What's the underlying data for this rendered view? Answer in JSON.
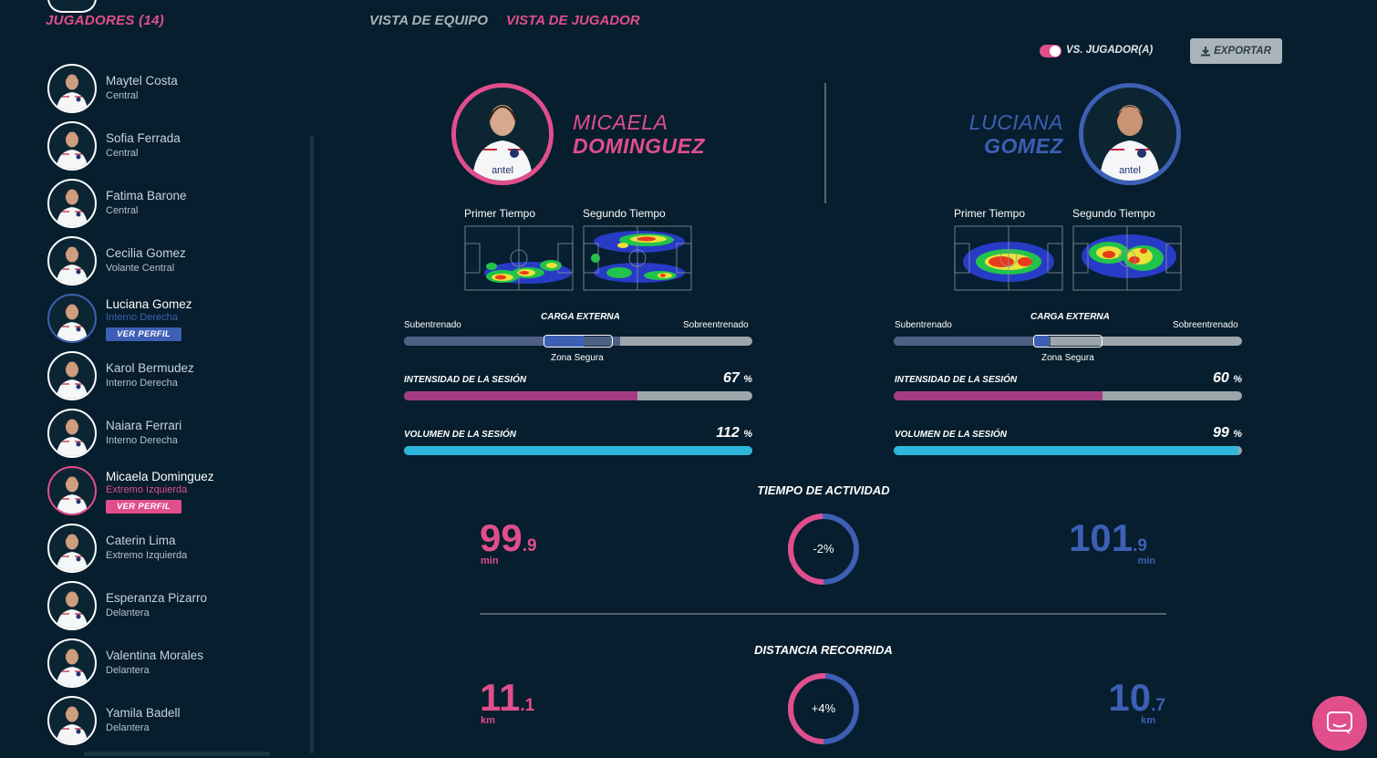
{
  "sidebar": {
    "title": "JUGADORES (14)",
    "players": [
      {
        "name": "Maytel Costa",
        "role": "Central"
      },
      {
        "name": "Sofia Ferrada",
        "role": "Central"
      },
      {
        "name": "Fatima Barone",
        "role": "Central"
      },
      {
        "name": "Cecilia Gomez",
        "role": "Volante Central"
      },
      {
        "name": "Luciana Gomez",
        "role": "Interno Derecha",
        "button": "VER PERFIL"
      },
      {
        "name": "Karol Bermudez",
        "role": "Interno Derecha"
      },
      {
        "name": "Naiara Ferrari",
        "role": "Interno Derecha"
      },
      {
        "name": "Micaela Dominguez",
        "role": "Extremo Izquierda",
        "button": "VER PERFIL"
      },
      {
        "name": "Caterin Lima",
        "role": "Extremo Izquierda"
      },
      {
        "name": "Esperanza Pizarro",
        "role": "Delantera"
      },
      {
        "name": "Valentina Morales",
        "role": "Delantera"
      },
      {
        "name": "Yamila Badell",
        "role": "Delantera"
      }
    ]
  },
  "nav": {
    "team_view": "VISTA DE EQUIPO",
    "player_view": "VISTA DE JUGADOR"
  },
  "toolbar": {
    "vs_label": "VS. JUGADOR(A)",
    "export_label": "EXPORTAR"
  },
  "player_left": {
    "first_name": "MICAELA",
    "last_name": "DOMINGUEZ",
    "first_half": "Primer Tiempo",
    "second_half": "Segundo Tiempo",
    "intensity": "67",
    "volume": "112",
    "intensity_fraction": 0.67,
    "volume_fraction": 1.0,
    "external_load_fraction": 0.62
  },
  "player_right": {
    "first_name": "LUCIANA",
    "last_name": "GOMEZ",
    "first_half": "Primer Tiempo",
    "second_half": "Segundo Tiempo",
    "intensity": "60",
    "volume": "99",
    "intensity_fraction": 0.6,
    "volume_fraction": 0.99,
    "external_load_fraction": 0.45
  },
  "labels": {
    "undertrained": "Subentrenado",
    "external_load": "CARGA EXTERNA",
    "overtrained": "Sobreentrenado",
    "safe_zone": "Zona Segura",
    "session_intensity": "INTENSIDAD DE LA SESIÓN",
    "session_volume": "VOLUMEN DE LA SESIÓN",
    "percent": "%"
  },
  "stats": {
    "activity": {
      "title": "TIEMPO DE ACTIVIDAD",
      "left_int": "99",
      "left_dec": ".9",
      "left_unit": "min",
      "right_int": "101",
      "right_dec": ".9",
      "right_unit": "min",
      "diff": "-2%",
      "left_share": 0.495
    },
    "distance": {
      "title": "DISTANCIA RECORRIDA",
      "left_int": "11",
      "left_dec": ".1",
      "left_unit": "km",
      "right_int": "10",
      "right_dec": ".7",
      "right_unit": "km",
      "diff": "+4%",
      "left_share": 0.509
    }
  },
  "colors": {
    "pink": "#e14e8c",
    "blue": "#3d5fb4",
    "intensity": "#a43c83",
    "volume": "#2db5dc",
    "background": "#061e2d"
  },
  "icons": {
    "export": "download-icon",
    "chat": "chat-icon"
  }
}
